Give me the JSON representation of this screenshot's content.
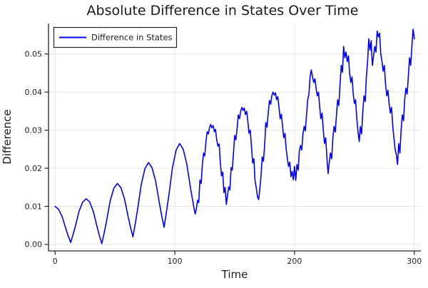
{
  "colors": {
    "series_blue": "#0000ff",
    "grid": "#e4e4e4",
    "spine": "#24242a",
    "text": "#1a1a1a",
    "legend_border": "#24242a",
    "legend_bg": "#ffffff",
    "background": "#ffffff"
  },
  "chart_data": {
    "type": "line",
    "title": "Absolute Difference in States Over Time",
    "xlabel": "Time",
    "ylabel": "Difference",
    "legend": {
      "position": "top-left",
      "entries": [
        "Difference in States"
      ]
    },
    "grid": true,
    "xlim": [
      -5.5,
      305.5
    ],
    "ylim": [
      -0.0017,
      0.058
    ],
    "x_ticks": {
      "values": [
        0,
        100,
        200,
        300
      ],
      "labels": [
        "0",
        "100",
        "200",
        "300"
      ]
    },
    "y_ticks": {
      "values": [
        0.0,
        0.01,
        0.02,
        0.03,
        0.04,
        0.05
      ],
      "labels": [
        "0.00",
        "0.01",
        "0.02",
        "0.03",
        "0.04",
        "0.05"
      ]
    },
    "series": [
      {
        "name": "Difference in States",
        "color": "#0000ff",
        "points": [
          [
            0,
            0.01
          ],
          [
            3,
            0.0092
          ],
          [
            6,
            0.0072
          ],
          [
            9,
            0.0041
          ],
          [
            11,
            0.0022
          ],
          [
            13,
            0.0005
          ],
          [
            15,
            0.0026
          ],
          [
            17,
            0.0049
          ],
          [
            20,
            0.0087
          ],
          [
            23,
            0.0111
          ],
          [
            26,
            0.012
          ],
          [
            29,
            0.0111
          ],
          [
            32,
            0.0086
          ],
          [
            35,
            0.0047
          ],
          [
            37,
            0.0023
          ],
          [
            39,
            0.0002
          ],
          [
            41,
            0.003
          ],
          [
            43,
            0.0062
          ],
          [
            46,
            0.0114
          ],
          [
            49,
            0.0147
          ],
          [
            52,
            0.016
          ],
          [
            55,
            0.0149
          ],
          [
            58,
            0.0119
          ],
          [
            61,
            0.0073
          ],
          [
            63,
            0.0045
          ],
          [
            65,
            0.002
          ],
          [
            67,
            0.0055
          ],
          [
            69,
            0.0094
          ],
          [
            72,
            0.0158
          ],
          [
            75,
            0.0199
          ],
          [
            78,
            0.0215
          ],
          [
            81,
            0.0201
          ],
          [
            84,
            0.0166
          ],
          [
            87,
            0.011
          ],
          [
            89,
            0.0076
          ],
          [
            91,
            0.0045
          ],
          [
            93,
            0.0085
          ],
          [
            95,
            0.0129
          ],
          [
            98,
            0.0201
          ],
          [
            101,
            0.0247
          ],
          [
            104,
            0.0265
          ],
          [
            107,
            0.025
          ],
          [
            110,
            0.0211
          ],
          [
            113,
            0.015
          ],
          [
            115,
            0.0113
          ],
          [
            116,
            0.0096
          ],
          [
            117,
            0.008
          ],
          [
            118,
            0.0094
          ],
          [
            119,
            0.0116
          ],
          [
            120,
            0.011
          ],
          [
            121,
            0.0169
          ],
          [
            122,
            0.016
          ],
          [
            123,
            0.021
          ],
          [
            124,
            0.024
          ],
          [
            125,
            0.0232
          ],
          [
            126,
            0.027
          ],
          [
            127,
            0.0296
          ],
          [
            128,
            0.029
          ],
          [
            129,
            0.0308
          ],
          [
            130,
            0.0315
          ],
          [
            131,
            0.0306
          ],
          [
            132,
            0.0312
          ],
          [
            133,
            0.0296
          ],
          [
            134,
            0.0302
          ],
          [
            135,
            0.0275
          ],
          [
            136,
            0.0258
          ],
          [
            137,
            0.0264
          ],
          [
            138,
            0.0215
          ],
          [
            139,
            0.018
          ],
          [
            140,
            0.019
          ],
          [
            141,
            0.0136
          ],
          [
            142,
            0.015
          ],
          [
            143,
            0.0105
          ],
          [
            144,
            0.0128
          ],
          [
            145,
            0.0151
          ],
          [
            146,
            0.0143
          ],
          [
            147,
            0.0202
          ],
          [
            148,
            0.0195
          ],
          [
            149,
            0.024
          ],
          [
            150,
            0.0286
          ],
          [
            151,
            0.0275
          ],
          [
            152,
            0.0305
          ],
          [
            153,
            0.034
          ],
          [
            154,
            0.033
          ],
          [
            155,
            0.035
          ],
          [
            156,
            0.036
          ],
          [
            157,
            0.0352
          ],
          [
            158,
            0.0358
          ],
          [
            159,
            0.0341
          ],
          [
            160,
            0.035
          ],
          [
            161,
            0.0322
          ],
          [
            162,
            0.0292
          ],
          [
            163,
            0.03
          ],
          [
            164,
            0.0258
          ],
          [
            165,
            0.0214
          ],
          [
            166,
            0.0225
          ],
          [
            167,
            0.0167
          ],
          [
            168,
            0.015
          ],
          [
            169,
            0.0125
          ],
          [
            170,
            0.0118
          ],
          [
            171,
            0.0145
          ],
          [
            172,
            0.018
          ],
          [
            173,
            0.023
          ],
          [
            174,
            0.0218
          ],
          [
            175,
            0.026
          ],
          [
            176,
            0.032
          ],
          [
            177,
            0.0308
          ],
          [
            178,
            0.0345
          ],
          [
            179,
            0.0378
          ],
          [
            180,
            0.0368
          ],
          [
            181,
            0.039
          ],
          [
            182,
            0.04
          ],
          [
            183,
            0.0392
          ],
          [
            184,
            0.0398
          ],
          [
            185,
            0.038
          ],
          [
            186,
            0.0388
          ],
          [
            187,
            0.036
          ],
          [
            188,
            0.033
          ],
          [
            189,
            0.0342
          ],
          [
            190,
            0.031
          ],
          [
            191,
            0.028
          ],
          [
            192,
            0.0292
          ],
          [
            193,
            0.025
          ],
          [
            194,
            0.0225
          ],
          [
            195,
            0.0205
          ],
          [
            196,
            0.0216
          ],
          [
            197,
            0.0178
          ],
          [
            198,
            0.0192
          ],
          [
            199,
            0.017
          ],
          [
            200,
            0.0205
          ],
          [
            201,
            0.0168
          ],
          [
            202,
            0.021
          ],
          [
            203,
            0.0195
          ],
          [
            204,
            0.0245
          ],
          [
            205,
            0.026
          ],
          [
            206,
            0.0248
          ],
          [
            207,
            0.029
          ],
          [
            208,
            0.031
          ],
          [
            209,
            0.0298
          ],
          [
            210,
            0.034
          ],
          [
            211,
            0.038
          ],
          [
            212,
            0.0395
          ],
          [
            213,
            0.044
          ],
          [
            214,
            0.0458
          ],
          [
            215,
            0.044
          ],
          [
            216,
            0.0425
          ],
          [
            217,
            0.0435
          ],
          [
            218,
            0.041
          ],
          [
            219,
            0.039
          ],
          [
            220,
            0.04
          ],
          [
            221,
            0.036
          ],
          [
            222,
            0.033
          ],
          [
            223,
            0.0345
          ],
          [
            224,
            0.03
          ],
          [
            225,
            0.0265
          ],
          [
            226,
            0.028
          ],
          [
            227,
            0.023
          ],
          [
            228,
            0.0186
          ],
          [
            229,
            0.0215
          ],
          [
            230,
            0.024
          ],
          [
            231,
            0.0225
          ],
          [
            232,
            0.028
          ],
          [
            233,
            0.031
          ],
          [
            234,
            0.0295
          ],
          [
            235,
            0.034
          ],
          [
            236,
            0.038
          ],
          [
            237,
            0.0365
          ],
          [
            238,
            0.042
          ],
          [
            239,
            0.047
          ],
          [
            240,
            0.0452
          ],
          [
            241,
            0.052
          ],
          [
            242,
            0.049
          ],
          [
            243,
            0.0505
          ],
          [
            244,
            0.048
          ],
          [
            245,
            0.0495
          ],
          [
            246,
            0.045
          ],
          [
            247,
            0.0425
          ],
          [
            248,
            0.044
          ],
          [
            249,
            0.0395
          ],
          [
            250,
            0.037
          ],
          [
            251,
            0.038
          ],
          [
            252,
            0.033
          ],
          [
            253,
            0.0295
          ],
          [
            254,
            0.027
          ],
          [
            255,
            0.031
          ],
          [
            256,
            0.029
          ],
          [
            257,
            0.035
          ],
          [
            258,
            0.039
          ],
          [
            259,
            0.0375
          ],
          [
            260,
            0.044
          ],
          [
            261,
            0.048
          ],
          [
            262,
            0.054
          ],
          [
            263,
            0.051
          ],
          [
            264,
            0.0535
          ],
          [
            265,
            0.047
          ],
          [
            266,
            0.0495
          ],
          [
            267,
            0.052
          ],
          [
            268,
            0.0505
          ],
          [
            269,
            0.056
          ],
          [
            270,
            0.0545
          ],
          [
            271,
            0.0555
          ],
          [
            272,
            0.05
          ],
          [
            273,
            0.048
          ],
          [
            274,
            0.0455
          ],
          [
            275,
            0.047
          ],
          [
            276,
            0.042
          ],
          [
            277,
            0.039
          ],
          [
            278,
            0.0405
          ],
          [
            279,
            0.037
          ],
          [
            280,
            0.0345
          ],
          [
            281,
            0.036
          ],
          [
            282,
            0.031
          ],
          [
            283,
            0.028
          ],
          [
            284,
            0.025
          ],
          [
            285,
            0.0235
          ],
          [
            286,
            0.021
          ],
          [
            287,
            0.0265
          ],
          [
            288,
            0.024
          ],
          [
            289,
            0.03
          ],
          [
            290,
            0.034
          ],
          [
            291,
            0.0325
          ],
          [
            292,
            0.038
          ],
          [
            293,
            0.041
          ],
          [
            294,
            0.0395
          ],
          [
            295,
            0.044
          ],
          [
            296,
            0.049
          ],
          [
            297,
            0.047
          ],
          [
            298,
            0.052
          ],
          [
            299,
            0.0565
          ],
          [
            300,
            0.054
          ]
        ]
      }
    ]
  }
}
